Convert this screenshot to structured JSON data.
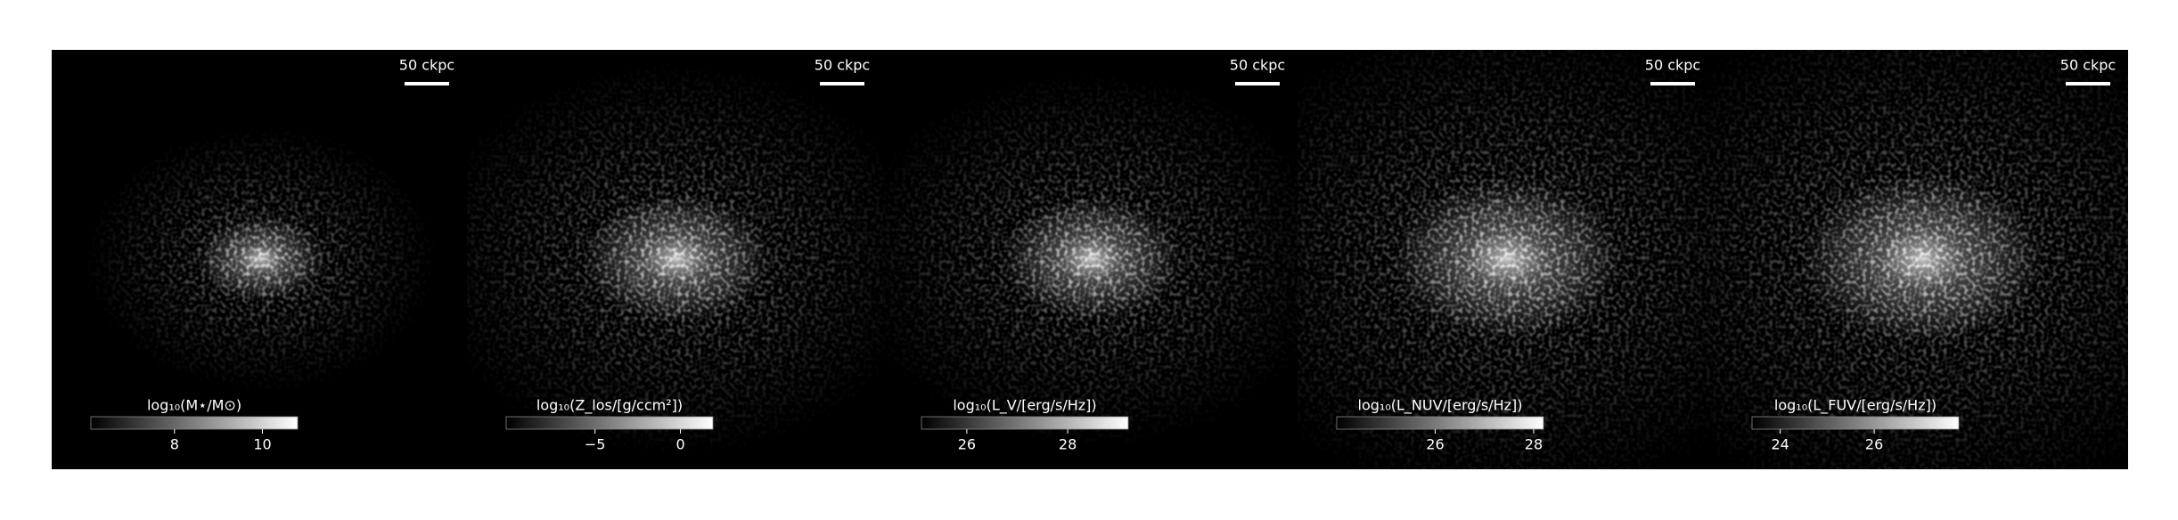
{
  "panels": [
    {
      "scale_label": "50 ckpc",
      "colorbar": {
        "label": "log₁₀(M⋆/M⊙)",
        "lim": [
          6.1,
          10.8
        ],
        "ticks": [
          8,
          10
        ]
      }
    },
    {
      "scale_label": "50 ckpc",
      "colorbar": {
        "label": "log₁₀(Z_los/[g/ccm²])",
        "lim": [
          -10.2,
          1.9
        ],
        "ticks": [
          {
            "value": -5,
            "label": "−5"
          },
          0
        ]
      }
    },
    {
      "scale_label": "50 ckpc",
      "colorbar": {
        "label": "log₁₀(L_V/[erg/s/Hz])",
        "lim": [
          25.1,
          29.2
        ],
        "ticks": [
          26,
          28
        ]
      }
    },
    {
      "scale_label": "50 ckpc",
      "colorbar": {
        "label": "log₁₀(L_NUV/[erg/s/Hz])",
        "lim": [
          24.0,
          28.2
        ],
        "ticks": [
          26,
          28
        ]
      }
    },
    {
      "scale_label": "50 ckpc",
      "colorbar": {
        "label": "log₁₀(L_FUV/[erg/s/Hz])",
        "lim": [
          23.4,
          27.8
        ],
        "ticks": [
          24,
          26
        ]
      }
    }
  ]
}
